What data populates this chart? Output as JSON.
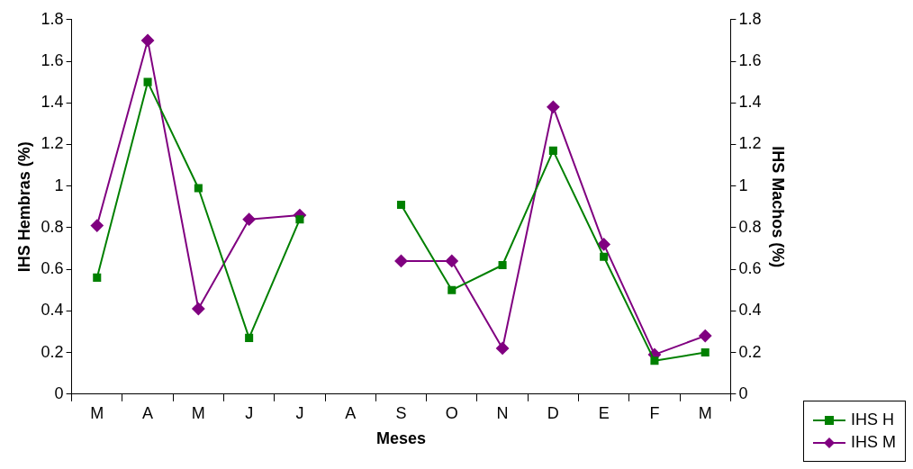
{
  "chart_data": {
    "type": "line",
    "xlabel": "Meses",
    "ylabel": "IHS Hembras (%)",
    "y2label": "IHS Machos (%)",
    "categories": [
      "M",
      "A",
      "M",
      "J",
      "J",
      "A",
      "S",
      "O",
      "N",
      "D",
      "E",
      "F",
      "M"
    ],
    "series": [
      {
        "name": "IHS H",
        "color": "#008000",
        "marker": "square",
        "values": [
          0.56,
          1.5,
          0.99,
          0.27,
          0.84,
          null,
          0.91,
          0.5,
          0.62,
          1.17,
          0.66,
          0.16,
          0.2
        ]
      },
      {
        "name": "IHS M",
        "color": "#800080",
        "marker": "diamond",
        "axis": "y2",
        "values": [
          0.81,
          1.7,
          0.41,
          0.84,
          0.86,
          null,
          0.64,
          0.64,
          0.22,
          1.38,
          0.72,
          0.19,
          0.28
        ]
      }
    ],
    "ylim": [
      0,
      1.8
    ],
    "yticks": [
      0,
      0.2,
      0.4,
      0.6,
      0.8,
      1,
      1.2,
      1.4,
      1.6,
      1.8
    ],
    "y2lim": [
      0,
      1.8
    ],
    "y2ticks": [
      0,
      0.2,
      0.4,
      0.6,
      0.8,
      1,
      1.2,
      1.4,
      1.6,
      1.8
    ],
    "grid": false,
    "legend": "bottom right",
    "line_style": "solid"
  }
}
